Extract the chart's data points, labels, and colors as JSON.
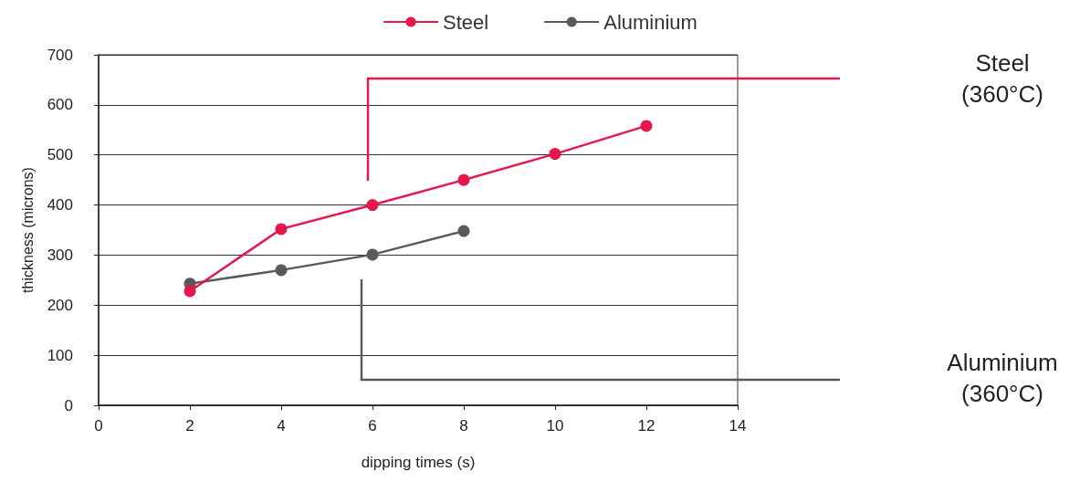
{
  "chart_data": {
    "type": "line",
    "xlabel": "dipping times (s)",
    "ylabel": "thickness (microns)",
    "xlim": [
      0,
      14
    ],
    "xticks": [
      0,
      2,
      4,
      6,
      8,
      10,
      12,
      14
    ],
    "ylim": [
      0,
      700
    ],
    "yticks": [
      0,
      100,
      200,
      300,
      400,
      500,
      600,
      700
    ],
    "grid": "y",
    "legend": "top",
    "marker": "circle",
    "line_style": "solid",
    "series": [
      {
        "name": "Steel",
        "color": "#e8174a",
        "x": [
          2,
          4,
          6,
          8,
          10,
          12
        ],
        "values": [
          228,
          352,
          400,
          450,
          502,
          558
        ]
      },
      {
        "name": "Aluminium",
        "color": "#58595b",
        "x": [
          2,
          4,
          6,
          8
        ],
        "values": [
          243,
          270,
          301,
          348
        ]
      }
    ],
    "annotations": [
      "Steel\n(360°C)",
      "Aluminium\n(360°C)"
    ]
  }
}
